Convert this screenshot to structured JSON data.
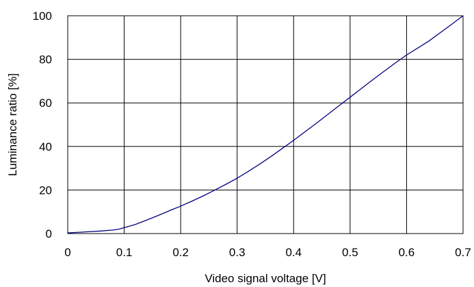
{
  "chart_data": {
    "type": "line",
    "xlabel": "Video signal voltage [V]",
    "ylabel": "Luminance ratio [%]",
    "xlim": [
      0,
      0.7
    ],
    "ylim": [
      0,
      100
    ],
    "xticks": [
      "0",
      "0.1",
      "0.2",
      "0.3",
      "0.4",
      "0.5",
      "0.6",
      "0.7"
    ],
    "yticks": [
      "0",
      "20",
      "40",
      "60",
      "80",
      "100"
    ],
    "grid": true,
    "line_color": "#000080",
    "series": [
      {
        "x": [
          0,
          0.02,
          0.04,
          0.06,
          0.08,
          0.09,
          0.1,
          0.12,
          0.14,
          0.16,
          0.18,
          0.2,
          0.22,
          0.24,
          0.26,
          0.28,
          0.3,
          0.32,
          0.34,
          0.36,
          0.38,
          0.4,
          0.42,
          0.44,
          0.46,
          0.48,
          0.5,
          0.52,
          0.54,
          0.56,
          0.58,
          0.6,
          0.62,
          0.64,
          0.66,
          0.68,
          0.7
        ],
        "y": [
          0.3,
          0.6,
          0.9,
          1.2,
          1.6,
          2.0,
          2.7,
          4.2,
          6.2,
          8.3,
          10.5,
          12.6,
          14.9,
          17.3,
          19.9,
          22.6,
          25.4,
          28.6,
          31.9,
          35.4,
          39.1,
          42.8,
          46.7,
          50.6,
          54.6,
          58.6,
          62.6,
          66.6,
          70.6,
          74.5,
          78.3,
          82.0,
          85.2,
          88.5,
          92.3,
          96.1,
          100.0
        ]
      }
    ]
  }
}
